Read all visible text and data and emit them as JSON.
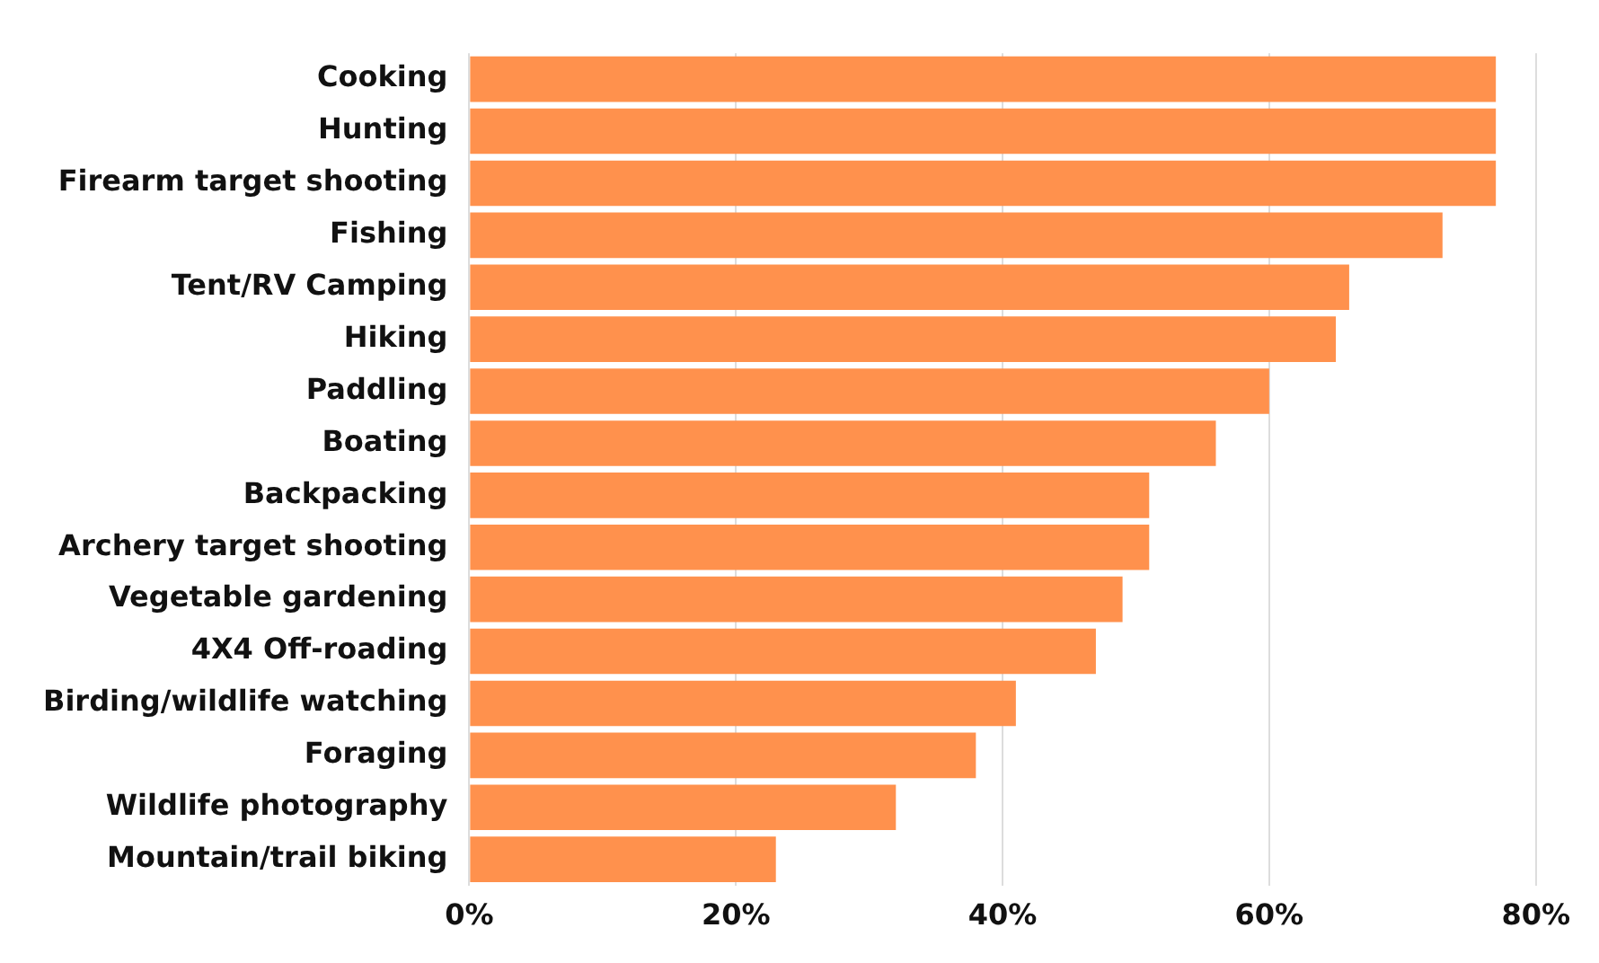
{
  "chart_data": {
    "type": "bar",
    "orientation": "horizontal",
    "categories": [
      "Cooking",
      "Hunting",
      "Firearm target shooting",
      "Fishing",
      "Tent/RV Camping",
      "Hiking",
      "Paddling",
      "Boating",
      "Backpacking",
      "Archery target shooting",
      "Vegetable gardening",
      "4X4 Off-roading",
      "Birding/wildlife watching",
      "Foraging",
      "Wildlife photography",
      "Mountain/trail biking"
    ],
    "values": [
      77,
      77,
      77,
      73,
      66,
      65,
      60,
      56,
      51,
      51,
      49,
      47,
      41,
      38,
      32,
      23
    ],
    "color": "#ff914d",
    "xlim": [
      0,
      80
    ],
    "xticks": [
      {
        "value": 0,
        "label": "0%"
      },
      {
        "value": 20,
        "label": "20%"
      },
      {
        "value": 40,
        "label": "40%"
      },
      {
        "value": 60,
        "label": "60%"
      },
      {
        "value": 80,
        "label": "80%"
      }
    ],
    "grid": "x"
  }
}
